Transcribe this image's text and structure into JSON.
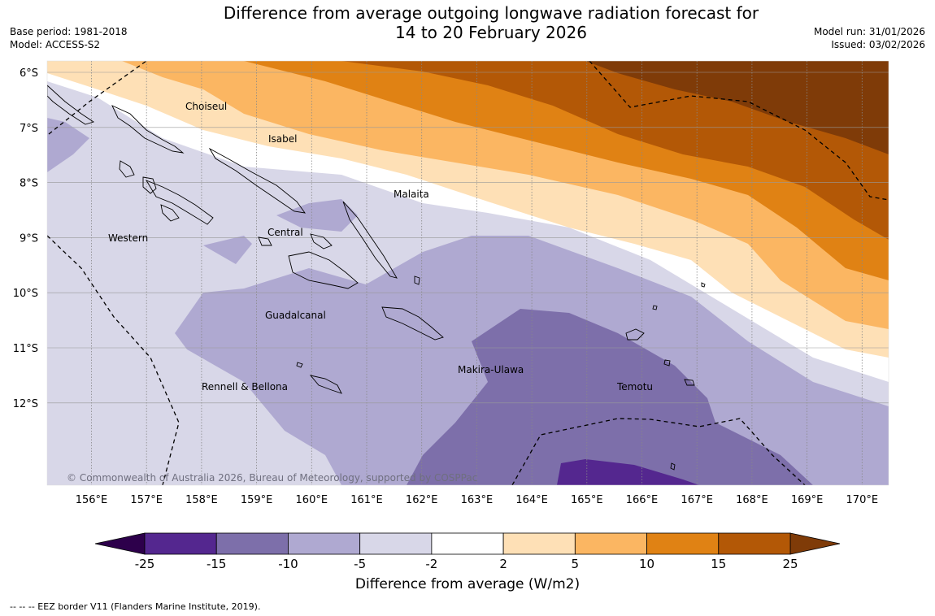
{
  "title": {
    "line1": "Difference from average outgoing longwave radiation forecast for",
    "line2": "14 to 20 February 2026"
  },
  "meta_left": {
    "base_period": "Base period: 1981-2018",
    "model": "Model: ACCESS-S2"
  },
  "meta_right": {
    "model_run": "Model run: 31/01/2026",
    "issued": "Issued: 03/02/2026"
  },
  "map": {
    "lat_labels": [
      "6°S",
      "7°S",
      "8°S",
      "9°S",
      "10°S",
      "11°S",
      "12°S"
    ],
    "lon_labels": [
      "156°E",
      "157°E",
      "158°E",
      "159°E",
      "160°E",
      "161°E",
      "162°E",
      "163°E",
      "164°E",
      "165°E",
      "166°E",
      "167°E",
      "168°E",
      "169°E",
      "170°E"
    ],
    "regions": [
      "Choiseul",
      "Isabel",
      "Malaita",
      "Western",
      "Central",
      "Guadalcanal",
      "Makira-Ulawa",
      "Temotu",
      "Rennell & Bellona"
    ],
    "copyright": "© Commonwealth of Australia 2026, Bureau of Meteorology, supported by COSPPac"
  },
  "colorbar": {
    "ticks": [
      "-25",
      "-15",
      "-10",
      "-5",
      "-2",
      "2",
      "5",
      "10",
      "15",
      "25"
    ],
    "colors": [
      "#54278f",
      "#7d6faa",
      "#afa9d1",
      "#d8d7e8",
      "#ffffff",
      "#fee0b6",
      "#fbb662",
      "#e08214",
      "#b35806"
    ],
    "under_color": "#2d004b",
    "over_color": "#7f3b08",
    "title": "Difference from average (W/m2)"
  },
  "footnote": "--  --  -- EEZ border V11 (Flanders Marine Institute, 2019)."
}
